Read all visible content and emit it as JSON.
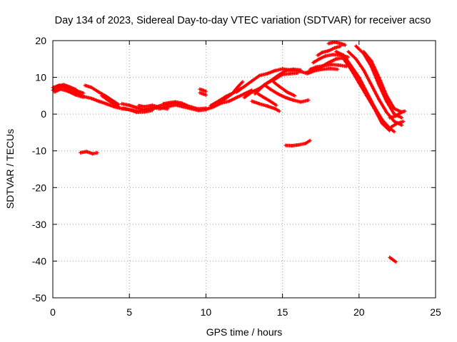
{
  "colors": {
    "series": "#ff0000",
    "grid": "#a0a0a0",
    "axis": "#000000"
  },
  "chart_data": {
    "type": "scatter",
    "title": "Day 134 of 2023, Sidereal Day-to-day VTEC variation (SDTVAR) for receiver acso",
    "xlabel": "GPS time / hours",
    "ylabel": "SDTVAR / TECUs",
    "xlim": [
      0,
      25
    ],
    "ylim": [
      -50,
      20
    ],
    "xticks": [
      0,
      5,
      10,
      15,
      20,
      25
    ],
    "yticks": [
      -50,
      -40,
      -30,
      -20,
      -10,
      0,
      10,
      20
    ],
    "grid": true,
    "series": [
      {
        "name": "SDTVAR",
        "marker": "+",
        "tracks": [
          [
            [
              0.0,
              6.5
            ],
            [
              0.3,
              7.2
            ],
            [
              0.6,
              7.5
            ],
            [
              1.0,
              6.8
            ],
            [
              1.5,
              5.8
            ],
            [
              2.0,
              4.8
            ],
            [
              2.5,
              4.3
            ],
            [
              3.0,
              3.5
            ],
            [
              3.5,
              2.8
            ],
            [
              4.0,
              2.0
            ],
            [
              4.5,
              1.5
            ],
            [
              5.0,
              1.2
            ],
            [
              5.5,
              0.8
            ],
            [
              6.0,
              1.2
            ],
            [
              6.5,
              1.8
            ],
            [
              7.0,
              1.5
            ],
            [
              7.5,
              2.0
            ],
            [
              8.0,
              2.5
            ],
            [
              8.5,
              2.0
            ],
            [
              9.0,
              1.5
            ],
            [
              9.5,
              1.0
            ],
            [
              10.0,
              1.2
            ]
          ],
          [
            [
              0.0,
              7.2
            ],
            [
              0.4,
              7.8
            ],
            [
              0.8,
              7.6
            ],
            [
              1.2,
              7.0
            ],
            [
              1.6,
              6.3
            ],
            [
              2.0,
              5.7
            ]
          ],
          [
            [
              0.1,
              6.0
            ],
            [
              0.5,
              6.8
            ],
            [
              1.0,
              6.2
            ],
            [
              1.5,
              5.2
            ],
            [
              2.0,
              4.6
            ]
          ],
          [
            [
              0.3,
              7.6
            ],
            [
              0.7,
              8.0
            ],
            [
              1.1,
              7.4
            ],
            [
              1.5,
              6.7
            ]
          ],
          [
            [
              2.1,
              7.8
            ],
            [
              2.5,
              7.3
            ],
            [
              3.0,
              6.0
            ],
            [
              3.5,
              4.8
            ],
            [
              4.0,
              3.4
            ],
            [
              4.3,
              2.6
            ]
          ],
          [
            [
              3.2,
              5.0
            ],
            [
              3.6,
              3.8
            ],
            [
              4.0,
              2.7
            ],
            [
              4.3,
              2.0
            ]
          ],
          [
            [
              4.5,
              2.8
            ],
            [
              5.0,
              2.4
            ],
            [
              5.5,
              1.7
            ],
            [
              6.0,
              1.1
            ],
            [
              6.5,
              1.4
            ],
            [
              7.0,
              2.3
            ],
            [
              7.5,
              2.6
            ],
            [
              8.0,
              3.0
            ],
            [
              8.5,
              2.5
            ],
            [
              9.0,
              2.0
            ],
            [
              9.5,
              1.4
            ],
            [
              10.0,
              1.6
            ]
          ],
          [
            [
              4.6,
              1.6
            ],
            [
              5.0,
              1.2
            ],
            [
              5.5,
              0.5
            ],
            [
              6.0,
              0.6
            ],
            [
              6.5,
              1.0
            ]
          ],
          [
            [
              5.6,
              2.3
            ],
            [
              6.0,
              2.0
            ],
            [
              6.5,
              2.4
            ],
            [
              7.0,
              1.8
            ],
            [
              7.5,
              1.4
            ]
          ],
          [
            [
              7.2,
              2.8
            ],
            [
              7.6,
              3.1
            ],
            [
              8.0,
              3.3
            ],
            [
              8.4,
              3.0
            ],
            [
              8.8,
              2.3
            ]
          ],
          [
            [
              9.6,
              6.8
            ],
            [
              9.8,
              6.5
            ],
            [
              10.0,
              6.2
            ]
          ],
          [
            [
              9.6,
              5.8
            ],
            [
              9.8,
              5.5
            ],
            [
              10.0,
              5.2
            ]
          ],
          [
            [
              10.0,
              1.3
            ],
            [
              10.5,
              2.0
            ],
            [
              11.0,
              3.0
            ],
            [
              11.5,
              3.5
            ],
            [
              12.0,
              4.5
            ],
            [
              12.5,
              5.5
            ],
            [
              13.0,
              6.5
            ]
          ],
          [
            [
              10.3,
              2.3
            ],
            [
              10.8,
              3.5
            ],
            [
              11.3,
              4.8
            ],
            [
              11.8,
              5.8
            ],
            [
              12.3,
              7.0
            ]
          ],
          [
            [
              10.8,
              3.0
            ],
            [
              11.2,
              4.0
            ],
            [
              11.7,
              5.5
            ],
            [
              12.1,
              7.5
            ],
            [
              12.4,
              8.8
            ]
          ],
          [
            [
              12.0,
              6.0
            ],
            [
              12.5,
              7.5
            ],
            [
              13.0,
              9.0
            ],
            [
              13.5,
              10.5
            ],
            [
              14.0,
              11.0
            ],
            [
              14.5,
              11.8
            ],
            [
              15.0,
              12.3
            ],
            [
              15.5,
              12.0
            ],
            [
              16.0,
              11.8
            ],
            [
              16.5,
              11.2
            ],
            [
              17.0,
              12.0
            ],
            [
              17.5,
              12.8
            ],
            [
              18.0,
              14.0
            ],
            [
              18.5,
              15.0
            ],
            [
              19.0,
              15.3
            ]
          ],
          [
            [
              12.5,
              4.5
            ],
            [
              13.0,
              6.0
            ],
            [
              13.5,
              7.0
            ],
            [
              14.0,
              8.5
            ],
            [
              14.5,
              9.5
            ],
            [
              15.0,
              10.8
            ],
            [
              15.5,
              11.0
            ],
            [
              16.0,
              11.2
            ]
          ],
          [
            [
              13.2,
              5.5
            ],
            [
              13.7,
              7.5
            ],
            [
              14.2,
              9.0
            ],
            [
              14.7,
              10.5
            ],
            [
              15.2,
              11.8
            ],
            [
              15.7,
              12.2
            ],
            [
              16.2,
              12.0
            ]
          ],
          [
            [
              13.0,
              3.5
            ],
            [
              13.5,
              2.8
            ],
            [
              14.0,
              2.2
            ],
            [
              14.5,
              1.5
            ],
            [
              14.8,
              0.8
            ]
          ],
          [
            [
              13.4,
              5.5
            ],
            [
              13.8,
              4.5
            ],
            [
              14.2,
              3.5
            ],
            [
              14.6,
              2.4
            ]
          ],
          [
            [
              13.8,
              8.0
            ],
            [
              14.2,
              6.8
            ],
            [
              14.7,
              5.5
            ],
            [
              15.2,
              4.5
            ],
            [
              15.7,
              3.8
            ],
            [
              16.2,
              3.3
            ],
            [
              16.7,
              3.8
            ]
          ],
          [
            [
              14.4,
              8.8
            ],
            [
              14.8,
              7.5
            ],
            [
              15.3,
              6.0
            ],
            [
              15.8,
              5.0
            ]
          ],
          [
            [
              16.8,
              12.2
            ],
            [
              17.2,
              12.8
            ],
            [
              17.7,
              13.2
            ],
            [
              18.2,
              13.5
            ],
            [
              18.7,
              13.3
            ],
            [
              19.2,
              13.0
            ]
          ],
          [
            [
              16.6,
              11.0
            ],
            [
              17.1,
              11.8
            ],
            [
              17.6,
              12.2
            ],
            [
              18.1,
              12.4
            ],
            [
              18.6,
              12.2
            ]
          ],
          [
            [
              17.0,
              14.0
            ],
            [
              17.4,
              15.0
            ],
            [
              17.8,
              15.8
            ],
            [
              18.3,
              16.2
            ],
            [
              18.8,
              16.0
            ],
            [
              19.3,
              15.5
            ]
          ],
          [
            [
              17.3,
              16.0
            ],
            [
              17.6,
              16.8
            ],
            [
              18.0,
              17.2
            ],
            [
              18.4,
              18.0
            ],
            [
              18.8,
              18.5
            ]
          ],
          [
            [
              18.0,
              19.2
            ],
            [
              18.4,
              19.6
            ],
            [
              18.8,
              19.2
            ],
            [
              19.1,
              18.8
            ]
          ],
          [
            [
              18.5,
              17.0
            ],
            [
              19.0,
              16.0
            ],
            [
              19.5,
              13.0
            ],
            [
              20.0,
              10.0
            ],
            [
              20.5,
              6.0
            ],
            [
              21.0,
              2.0
            ],
            [
              21.5,
              -1.5
            ],
            [
              22.0,
              -3.8
            ],
            [
              22.3,
              -4.8
            ]
          ],
          [
            [
              19.0,
              15.0
            ],
            [
              19.5,
              12.0
            ],
            [
              20.0,
              8.5
            ],
            [
              20.5,
              5.0
            ],
            [
              21.0,
              1.5
            ],
            [
              21.5,
              -2.5
            ],
            [
              22.0,
              -4.5
            ]
          ],
          [
            [
              19.3,
              17.0
            ],
            [
              19.8,
              15.0
            ],
            [
              20.3,
              12.0
            ],
            [
              20.8,
              8.0
            ],
            [
              21.3,
              4.0
            ],
            [
              21.8,
              0.5
            ],
            [
              22.3,
              -2.0
            ],
            [
              22.8,
              -3.0
            ]
          ],
          [
            [
              19.8,
              18.5
            ],
            [
              20.3,
              16.5
            ],
            [
              20.8,
              13.0
            ],
            [
              21.3,
              8.0
            ],
            [
              21.8,
              3.5
            ],
            [
              22.3,
              0.0
            ],
            [
              22.8,
              -1.0
            ]
          ],
          [
            [
              20.3,
              17.0
            ],
            [
              20.8,
              14.5
            ],
            [
              21.3,
              10.0
            ],
            [
              21.8,
              5.0
            ],
            [
              22.3,
              1.5
            ],
            [
              22.8,
              0.5
            ]
          ],
          [
            [
              22.0,
              -1.0
            ],
            [
              22.4,
              -0.5
            ],
            [
              22.8,
              0.6
            ],
            [
              23.0,
              0.8
            ]
          ],
          [
            [
              22.1,
              -3.5
            ],
            [
              22.5,
              -2.5
            ],
            [
              22.9,
              -2.0
            ]
          ],
          [
            [
              1.8,
              -10.5
            ],
            [
              2.2,
              -10.2
            ],
            [
              2.6,
              -10.8
            ],
            [
              2.9,
              -10.5
            ]
          ],
          [
            [
              15.2,
              -8.5
            ],
            [
              15.6,
              -8.6
            ],
            [
              16.0,
              -8.4
            ],
            [
              16.5,
              -8.0
            ],
            [
              16.8,
              -7.2
            ]
          ],
          [
            [
              22.0,
              -39.0
            ],
            [
              22.2,
              -39.6
            ],
            [
              22.4,
              -40.2
            ]
          ]
        ]
      }
    ]
  }
}
